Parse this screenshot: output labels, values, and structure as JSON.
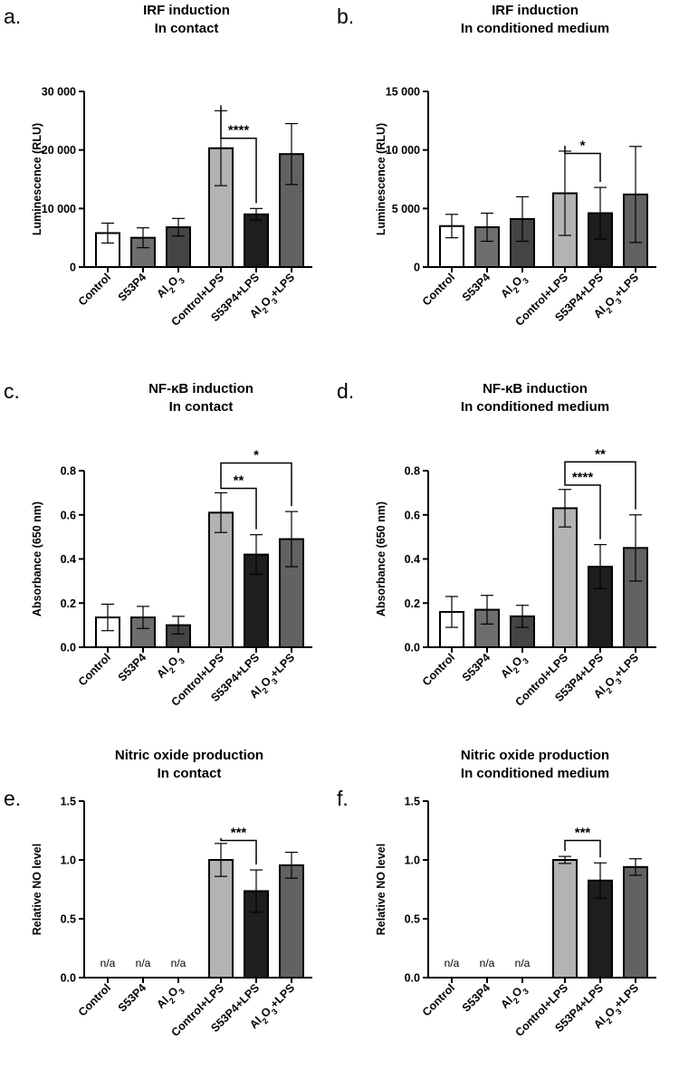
{
  "categories": [
    "Control",
    "S53P4",
    "Al2O3",
    "Control+LPS",
    "S53P4+LPS",
    "Al2O3+LPS"
  ],
  "bar_colors": [
    "#ffffff",
    "#6e6e6e",
    "#444444",
    "#b3b3b3",
    "#1e1e1e",
    "#626262"
  ],
  "chart_data": [
    {
      "type": "bar",
      "panel": "a.",
      "title": [
        "IRF induction",
        "In contact"
      ],
      "ylabel": "Luminescence (RLU)",
      "ylim": [
        0,
        30000
      ],
      "yticks": [
        0,
        10000,
        20000,
        30000
      ],
      "ytick_labels": [
        "0",
        "10 000",
        "20 000",
        "30 000"
      ],
      "categories": [
        "Control",
        "S53P4",
        "Al2O3",
        "Control+LPS",
        "S53P4+LPS",
        "Al2O3+LPS"
      ],
      "values": [
        5800,
        5000,
        6800,
        20300,
        9000,
        19300
      ],
      "errors": [
        1700,
        1700,
        1500,
        6400,
        1000,
        5200
      ],
      "na_labels": [],
      "significance": [
        {
          "from": 3,
          "to": 4,
          "label": "****",
          "y": 22000
        }
      ]
    },
    {
      "type": "bar",
      "panel": "b.",
      "title": [
        "IRF induction",
        "In conditioned medium"
      ],
      "ylabel": "Luminescence (RLU)",
      "ylim": [
        0,
        15000
      ],
      "yticks": [
        0,
        5000,
        10000,
        15000
      ],
      "ytick_labels": [
        "0",
        "5 000",
        "10 000",
        "15 000"
      ],
      "categories": [
        "Control",
        "S53P4",
        "Al2O3",
        "Control+LPS",
        "S53P4+LPS",
        "Al2O3+LPS"
      ],
      "values": [
        3500,
        3400,
        4100,
        6300,
        4600,
        6200
      ],
      "errors": [
        1000,
        1200,
        1900,
        3600,
        2200,
        4100
      ],
      "na_labels": [],
      "significance": [
        {
          "from": 3,
          "to": 4,
          "label": "*",
          "y": 9700
        }
      ]
    },
    {
      "type": "bar",
      "panel": "c.",
      "title": [
        "NF-κB induction",
        "In contact"
      ],
      "ylabel": "Absorbance (650 nm)",
      "ylim": [
        0,
        0.8
      ],
      "yticks": [
        0,
        0.2,
        0.4,
        0.6,
        0.8
      ],
      "ytick_labels": [
        "0.0",
        "0.2",
        "0.4",
        "0.6",
        "0.8"
      ],
      "categories": [
        "Control",
        "S53P4",
        "Al2O3",
        "Control+LPS",
        "S53P4+LPS",
        "Al2O3+LPS"
      ],
      "values": [
        0.135,
        0.135,
        0.1,
        0.61,
        0.42,
        0.49
      ],
      "errors": [
        0.06,
        0.05,
        0.04,
        0.09,
        0.09,
        0.125
      ],
      "na_labels": [],
      "significance": [
        {
          "from": 3,
          "to": 4,
          "label": "**",
          "y": 0.72
        },
        {
          "from": 3,
          "to": 5,
          "label": "*",
          "y": 0.835
        }
      ]
    },
    {
      "type": "bar",
      "panel": "d.",
      "title": [
        "NF-κB induction",
        "In conditioned medium"
      ],
      "ylabel": "Absorbance (650 nm)",
      "ylim": [
        0,
        0.8
      ],
      "yticks": [
        0,
        0.2,
        0.4,
        0.6,
        0.8
      ],
      "ytick_labels": [
        "0.0",
        "0.2",
        "0.4",
        "0.6",
        "0.8"
      ],
      "categories": [
        "Control",
        "S53P4",
        "Al2O3",
        "Control+LPS",
        "S53P4+LPS",
        "Al2O3+LPS"
      ],
      "values": [
        0.16,
        0.17,
        0.14,
        0.63,
        0.365,
        0.45
      ],
      "errors": [
        0.07,
        0.065,
        0.05,
        0.085,
        0.1,
        0.15
      ],
      "na_labels": [],
      "significance": [
        {
          "from": 3,
          "to": 4,
          "label": "****",
          "y": 0.735
        },
        {
          "from": 3,
          "to": 5,
          "label": "**",
          "y": 0.84
        }
      ]
    },
    {
      "type": "bar",
      "panel": "e.",
      "title": [
        "Nitric oxide production",
        "In contact"
      ],
      "ylabel": "Relative NO level",
      "ylim": [
        0,
        1.5
      ],
      "yticks": [
        0,
        0.5,
        1.0,
        1.5
      ],
      "ytick_labels": [
        "0.0",
        "0.5",
        "1.0",
        "1.5"
      ],
      "categories": [
        "Control",
        "S53P4",
        "Al2O3",
        "Control+LPS",
        "S53P4+LPS",
        "Al2O3+LPS"
      ],
      "values": [
        null,
        null,
        null,
        1.0,
        0.735,
        0.955
      ],
      "errors": [
        null,
        null,
        null,
        0.14,
        0.18,
        0.11
      ],
      "na_labels": [
        "n/a",
        "n/a",
        "n/a",
        null,
        null,
        null
      ],
      "significance": [
        {
          "from": 3,
          "to": 4,
          "label": "***",
          "y": 1.165
        }
      ]
    },
    {
      "type": "bar",
      "panel": "f.",
      "title": [
        "Nitric oxide production",
        "In conditioned medium"
      ],
      "ylabel": "Relative NO level",
      "ylim": [
        0,
        1.5
      ],
      "yticks": [
        0,
        0.5,
        1.0,
        1.5
      ],
      "ytick_labels": [
        "0.0",
        "0.5",
        "1.0",
        "1.5"
      ],
      "categories": [
        "Control",
        "S53P4",
        "Al2O3",
        "Control+LPS",
        "S53P4+LPS",
        "Al2O3+LPS"
      ],
      "values": [
        null,
        null,
        null,
        1.0,
        0.825,
        0.94
      ],
      "errors": [
        null,
        null,
        null,
        0.03,
        0.15,
        0.07
      ],
      "na_labels": [
        "n/a",
        "n/a",
        "n/a",
        null,
        null,
        null
      ],
      "significance": [
        {
          "from": 3,
          "to": 4,
          "label": "***",
          "y": 1.165
        }
      ]
    }
  ]
}
